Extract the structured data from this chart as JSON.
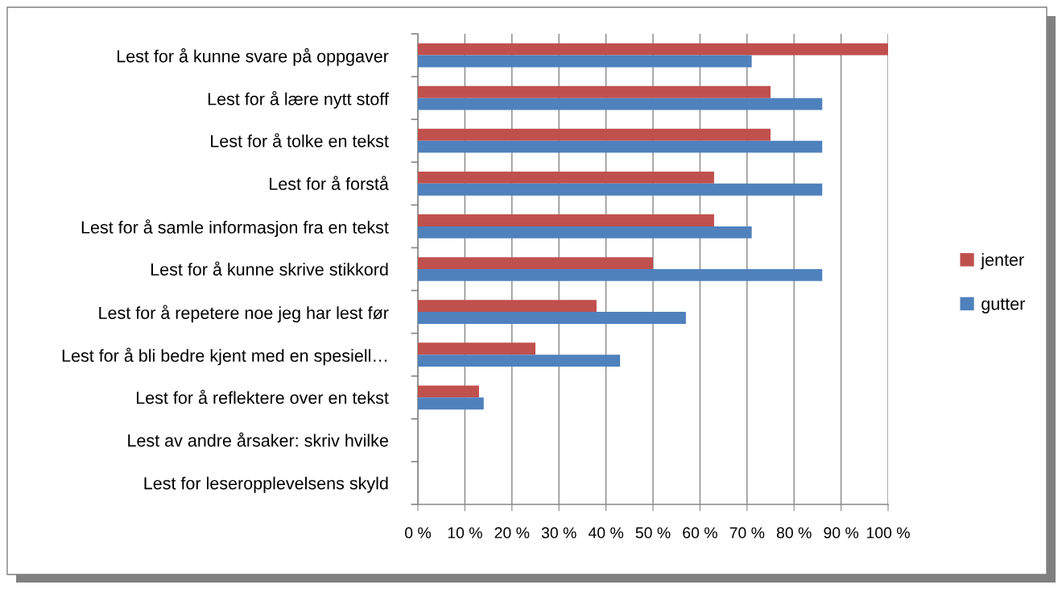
{
  "chart_data": {
    "type": "bar",
    "orientation": "horizontal",
    "categories": [
      "Lest for å kunne svare på oppgaver",
      "Lest for å lære nytt stoff",
      "Lest for å tolke en tekst",
      "Lest for å forstå",
      "Lest for å samle informasjon fra en tekst",
      "Lest for å kunne skrive stikkord",
      "Lest for å repetere noe jeg har lest før",
      "Lest for å bli bedre kjent med en spesiell…",
      "Lest for å reflektere over en tekst",
      "Lest av andre årsaker: skriv hvilke",
      "Lest for leseropplevelsens skyld"
    ],
    "series": [
      {
        "name": "jenter",
        "color": "#c0504d",
        "values": [
          100,
          75,
          75,
          63,
          63,
          50,
          38,
          25,
          13,
          0,
          0
        ]
      },
      {
        "name": "gutter",
        "color": "#4f81bd",
        "values": [
          71,
          86,
          86,
          86,
          71,
          86,
          57,
          43,
          14,
          0,
          0
        ]
      }
    ],
    "xlim": [
      0,
      100
    ],
    "xticks": [
      {
        "value": 0,
        "label": "0 %"
      },
      {
        "value": 10,
        "label": "10 %"
      },
      {
        "value": 20,
        "label": "20 %"
      },
      {
        "value": 30,
        "label": "30 %"
      },
      {
        "value": 40,
        "label": "40 %"
      },
      {
        "value": 50,
        "label": "50 %"
      },
      {
        "value": 60,
        "label": "60 %"
      },
      {
        "value": 70,
        "label": "70 %"
      },
      {
        "value": 80,
        "label": "80 %"
      },
      {
        "value": 90,
        "label": "90 %"
      },
      {
        "value": 100,
        "label": "100 %"
      }
    ],
    "grid": "x",
    "legend": "right"
  }
}
